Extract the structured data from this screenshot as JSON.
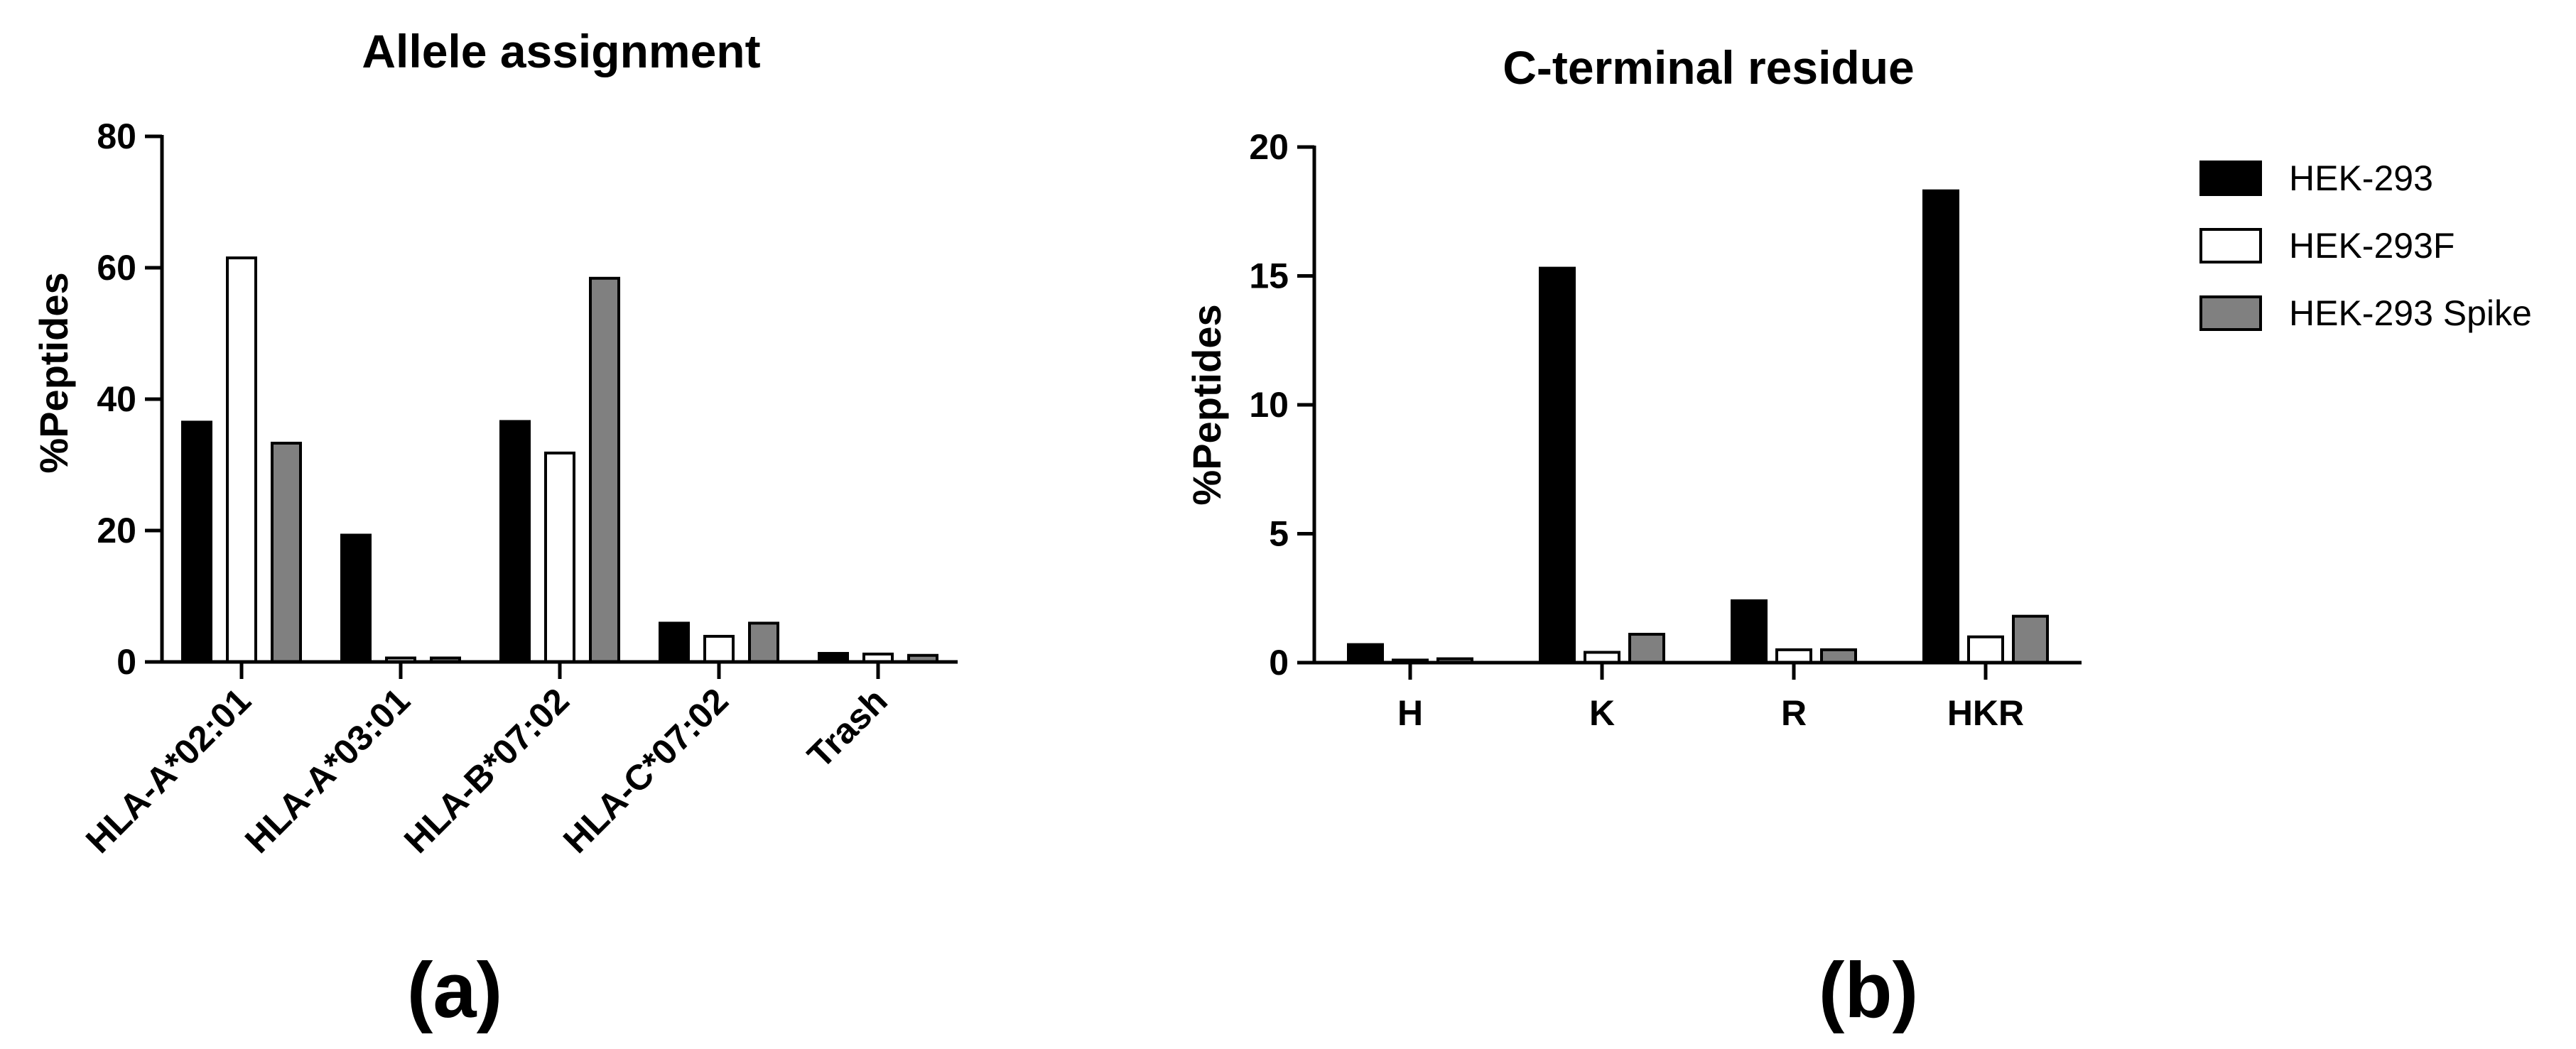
{
  "chart_data": [
    {
      "type": "bar",
      "panel_label": "(a)",
      "title": "Allele assignment",
      "ylabel": "%Peptides",
      "xlabel": "",
      "ylim": [
        0,
        80
      ],
      "yticks": [
        0,
        20,
        40,
        60,
        80
      ],
      "categories": [
        "HLA-A*02:01",
        "HLA-A*03:01",
        "HLA-B*07:02",
        "HLA-C*07:02",
        "Trash"
      ],
      "series": [
        {
          "name": "HEK-293",
          "color": "#000000",
          "values": [
            36.5,
            19.3,
            36.6,
            5.9,
            1.3
          ]
        },
        {
          "name": "HEK-293F",
          "color": "#ffffff",
          "values": [
            61.5,
            0.6,
            31.8,
            3.9,
            1.2
          ]
        },
        {
          "name": "HEK-293 Spike",
          "color": "#808080",
          "values": [
            33.3,
            0.6,
            58.4,
            5.9,
            1.0
          ]
        }
      ]
    },
    {
      "type": "bar",
      "panel_label": "(b)",
      "title": "C-terminal residue",
      "ylabel": "%Peptides",
      "xlabel": "",
      "ylim": [
        0,
        20
      ],
      "yticks": [
        0,
        5,
        10,
        15,
        20
      ],
      "categories": [
        "H",
        "K",
        "R",
        "HKR"
      ],
      "series": [
        {
          "name": "HEK-293",
          "color": "#000000",
          "values": [
            0.7,
            15.3,
            2.4,
            18.3
          ]
        },
        {
          "name": "HEK-293F",
          "color": "#ffffff",
          "values": [
            0.1,
            0.4,
            0.5,
            1.0
          ]
        },
        {
          "name": "HEK-293 Spike",
          "color": "#808080",
          "values": [
            0.15,
            1.1,
            0.5,
            1.8
          ]
        }
      ]
    }
  ],
  "legend": {
    "placement": "right",
    "entries": [
      {
        "label": "HEK-293",
        "color": "#000000"
      },
      {
        "label": "HEK-293F",
        "color": "#ffffff"
      },
      {
        "label": "HEK-293 Spike",
        "color": "#808080"
      }
    ]
  }
}
